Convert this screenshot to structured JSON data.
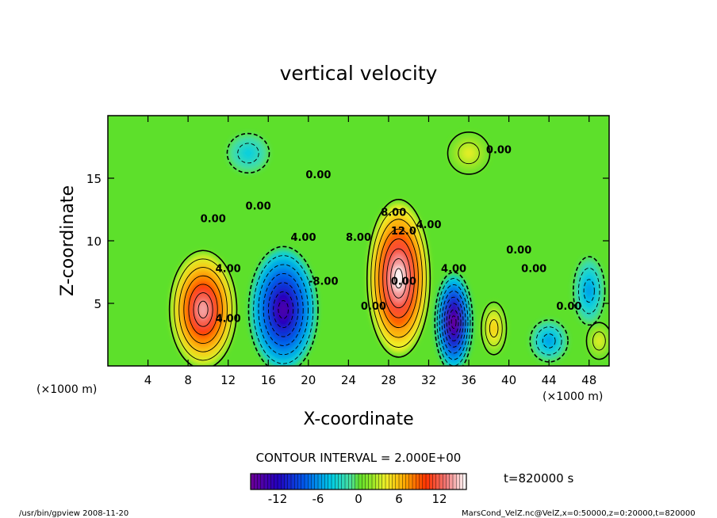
{
  "chart_data": {
    "type": "heatmap",
    "title": "vertical velocity",
    "xlabel": "X-coordinate",
    "ylabel": "Z-coordinate",
    "x_unit_left": "(×1000 m)",
    "x_unit_right": "(×1000 m)",
    "xlim": [
      0,
      50
    ],
    "ylim": [
      0,
      20
    ],
    "x_ticks": [
      "4",
      "8",
      "12",
      "16",
      "20",
      "24",
      "28",
      "32",
      "36",
      "40",
      "44",
      "48"
    ],
    "y_ticks": [
      "5",
      "10",
      "15"
    ],
    "contour_interval_text": "CONTOUR INTERVAL = 2.000E+00",
    "time_text": "t=820000 s",
    "colorbar": {
      "range": [
        -16,
        16
      ],
      "ticks": [
        "-12",
        "-6",
        "0",
        "6",
        "12"
      ]
    },
    "contour_labels": [
      "0.00",
      "0.00",
      "4.00",
      "4.00",
      "4.00",
      "8.00",
      "12.0",
      "8.00",
      "0.00",
      "4.00",
      "4.00",
      "-8.00",
      "0.00",
      "0.00",
      "0.00",
      "0.00",
      "0.00",
      "0.00"
    ],
    "features": [
      {
        "name": "updraft",
        "x": 9.5,
        "z": 4.5,
        "peak": 14
      },
      {
        "name": "downdraft",
        "x": 17.5,
        "z": 4.5,
        "peak": -14
      },
      {
        "name": "updraft",
        "x": 29,
        "z": 7,
        "peak": 16
      },
      {
        "name": "downdraft",
        "x": 34.5,
        "z": 3.5,
        "peak": -16
      },
      {
        "name": "updraft",
        "x": 38.5,
        "z": 3,
        "peak": 6
      },
      {
        "name": "downdraft",
        "x": 44,
        "z": 2,
        "peak": -6
      },
      {
        "name": "downdraft",
        "x": 48,
        "z": 6,
        "peak": -6
      },
      {
        "name": "updraft",
        "x": 49,
        "z": 2,
        "peak": 4
      },
      {
        "name": "updraft",
        "x": 36,
        "z": 17,
        "peak": 4
      },
      {
        "name": "downdraft",
        "x": 14,
        "z": 17,
        "peak": -4
      }
    ],
    "grid": false,
    "legend": "bottom"
  },
  "footer": {
    "left": "/usr/bin/gpview  2008-11-20",
    "right": "MarsCond_VelZ.nc@VelZ,x=0:50000,z=0:20000,t=820000"
  }
}
